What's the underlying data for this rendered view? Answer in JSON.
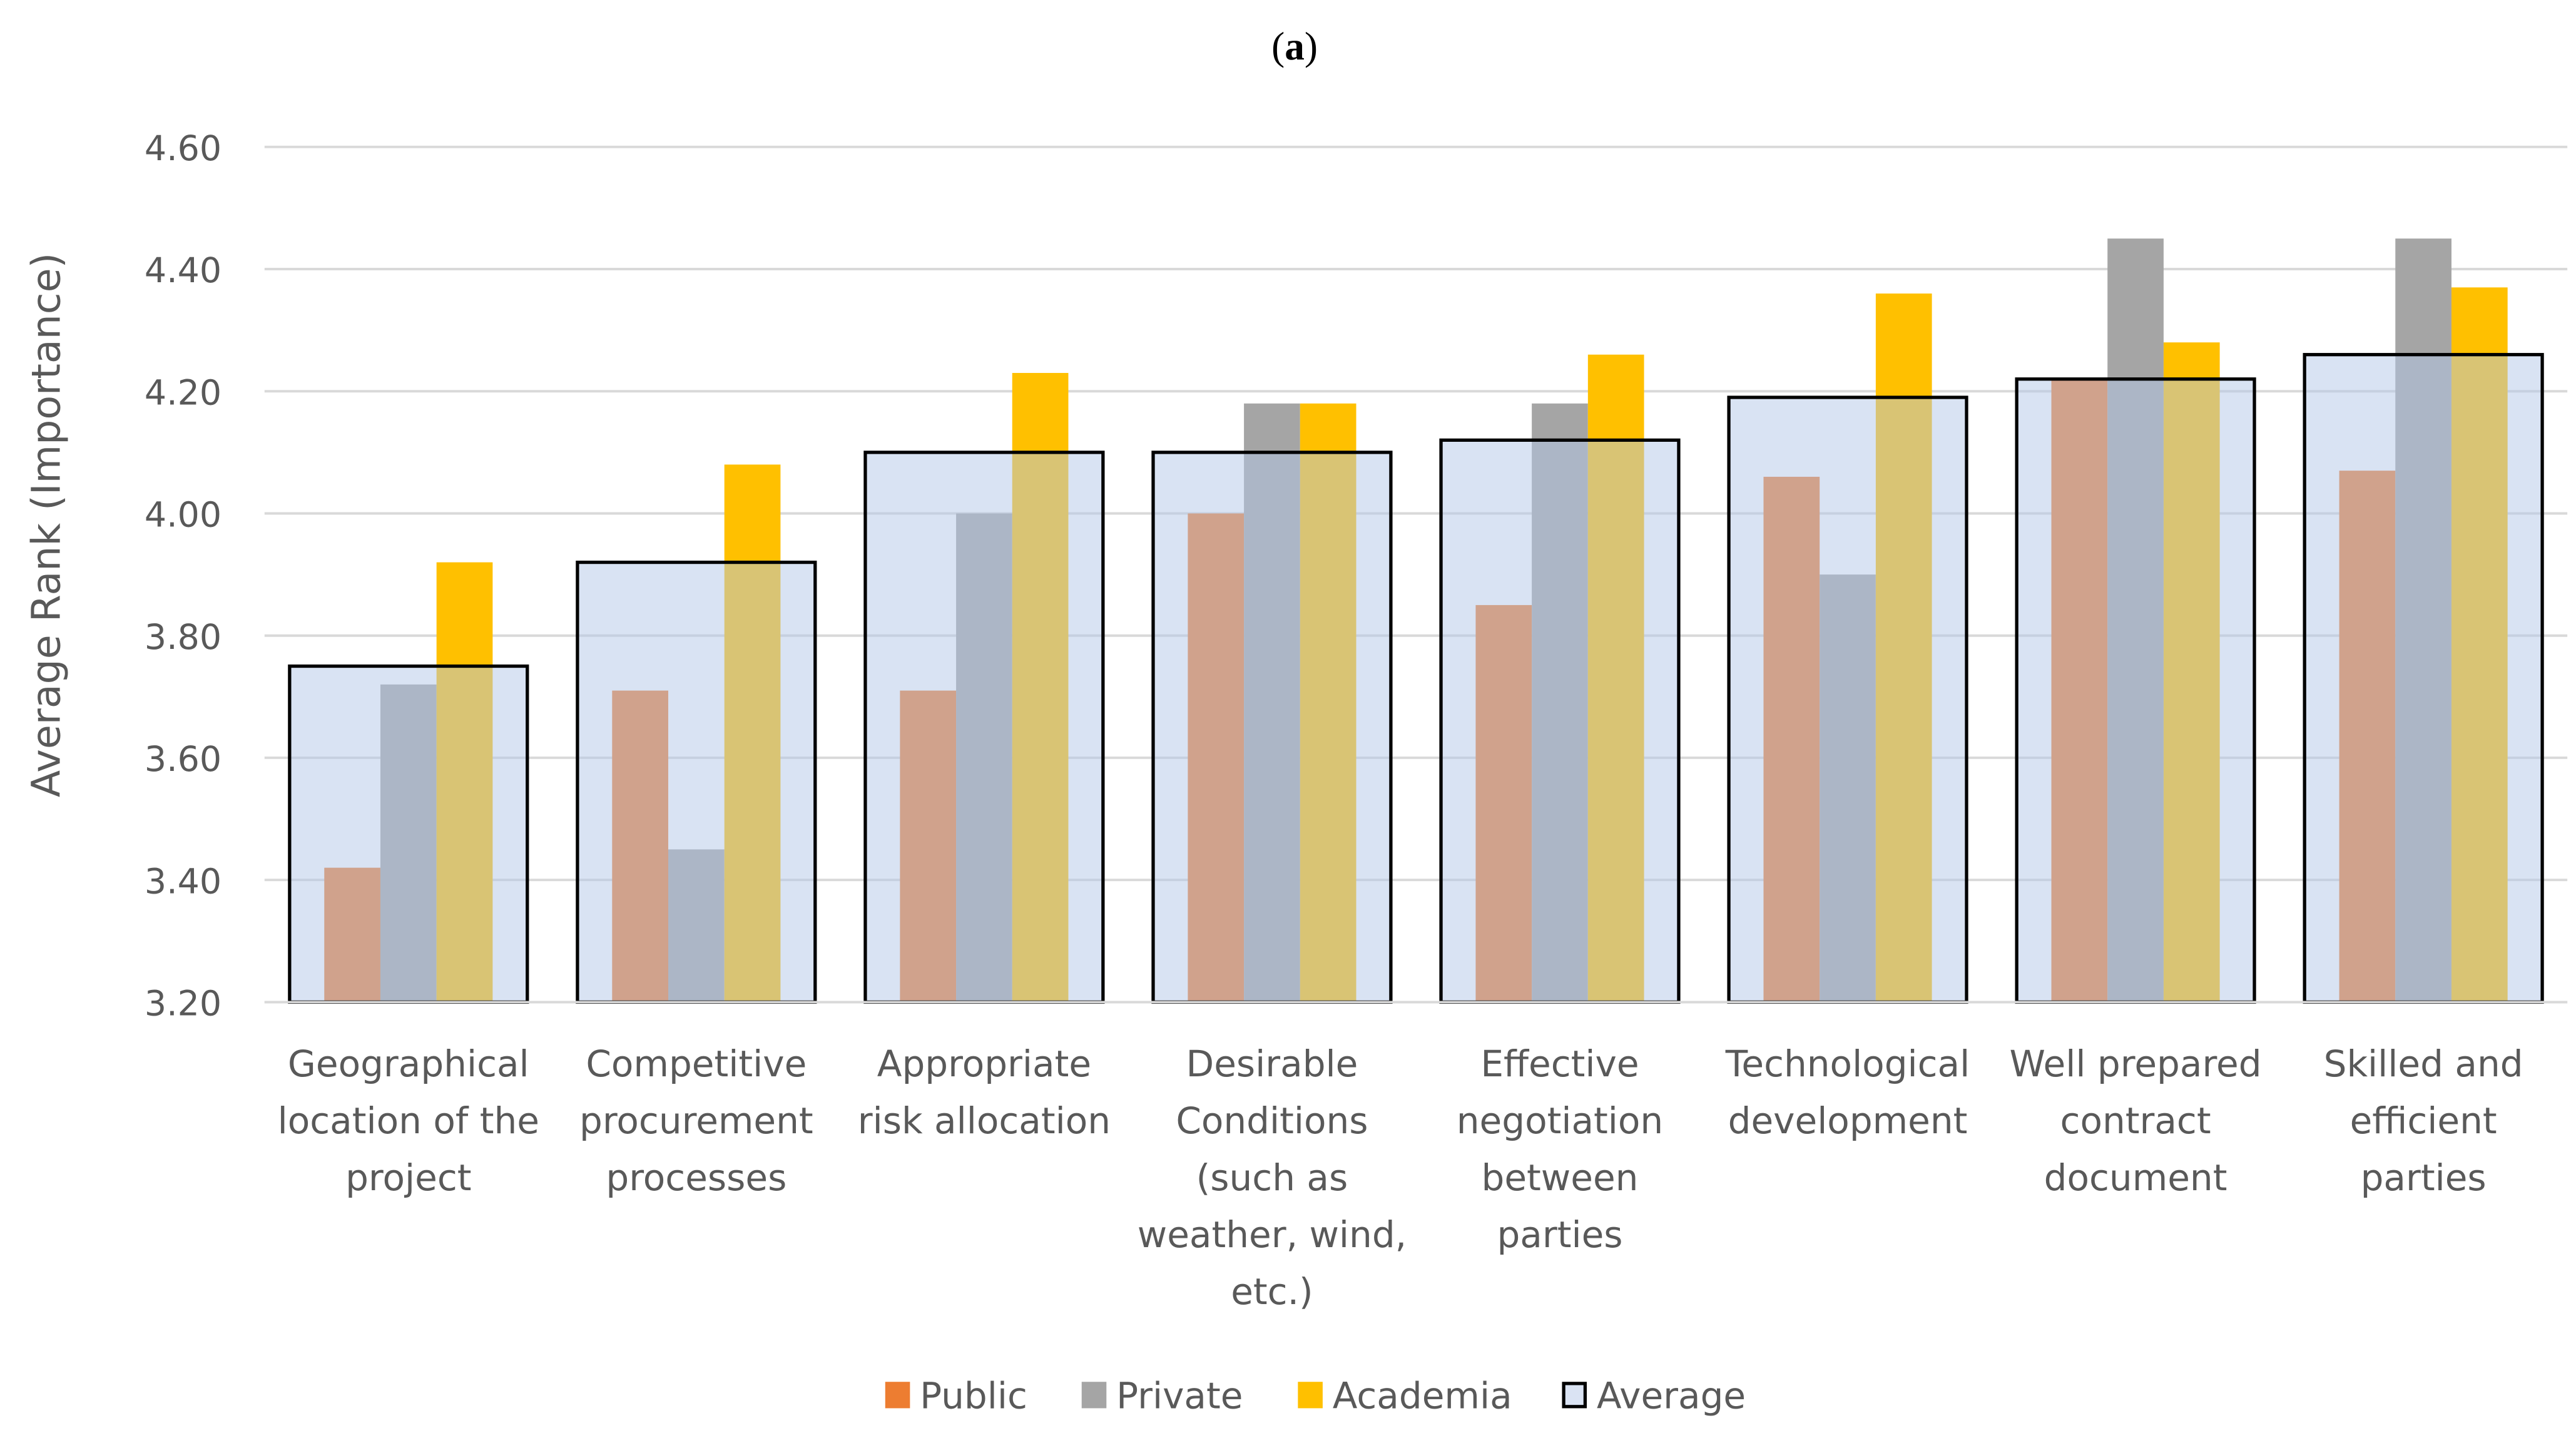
{
  "chart_data": {
    "type": "bar",
    "title_prefix": "(",
    "title_letter": "a",
    "title_suffix": ")",
    "ylabel": "Average Rank (Importance)",
    "xlabel": "",
    "ylim": [
      3.2,
      4.6
    ],
    "yticks": [
      "3.20",
      "3.40",
      "3.60",
      "3.80",
      "4.00",
      "4.20",
      "4.40",
      "4.60"
    ],
    "grid": true,
    "legend_position": "bottom",
    "categories": [
      "Geographical location of the project",
      "Competitive procurement processes",
      "Appropriate risk allocation",
      "Desirable Conditions (such as weather, wind, etc.)",
      "Effective negotiation between parties",
      "Technological development",
      "Well prepared contract document",
      "Skilled and efficient parties"
    ],
    "category_lines": [
      [
        "Geographical",
        "location of the",
        "project"
      ],
      [
        "Competitive",
        "procurement",
        "processes"
      ],
      [
        "Appropriate",
        "risk allocation"
      ],
      [
        "Desirable",
        "Conditions",
        "(such as",
        "weather, wind,",
        "etc.)"
      ],
      [
        "Effective",
        "negotiation",
        "between",
        "parties"
      ],
      [
        "Technological",
        "development"
      ],
      [
        "Well prepared",
        "contract",
        "document"
      ],
      [
        "Skilled and",
        "efficient",
        "parties"
      ]
    ],
    "series": [
      {
        "name": "Public",
        "color": "#ED7D31",
        "values": [
          3.42,
          3.71,
          3.71,
          4.0,
          3.85,
          4.06,
          4.22,
          4.07
        ]
      },
      {
        "name": "Private",
        "color": "#A5A5A5",
        "values": [
          3.72,
          3.45,
          4.0,
          4.18,
          4.18,
          3.9,
          4.45,
          4.45
        ]
      },
      {
        "name": "Academia",
        "color": "#FFC000",
        "values": [
          3.92,
          4.08,
          4.23,
          4.18,
          4.26,
          4.36,
          4.28,
          4.37
        ]
      },
      {
        "name": "Average",
        "color": "#DAE3F3",
        "values": [
          3.75,
          3.92,
          4.1,
          4.1,
          4.12,
          4.19,
          4.22,
          4.26
        ]
      }
    ]
  }
}
